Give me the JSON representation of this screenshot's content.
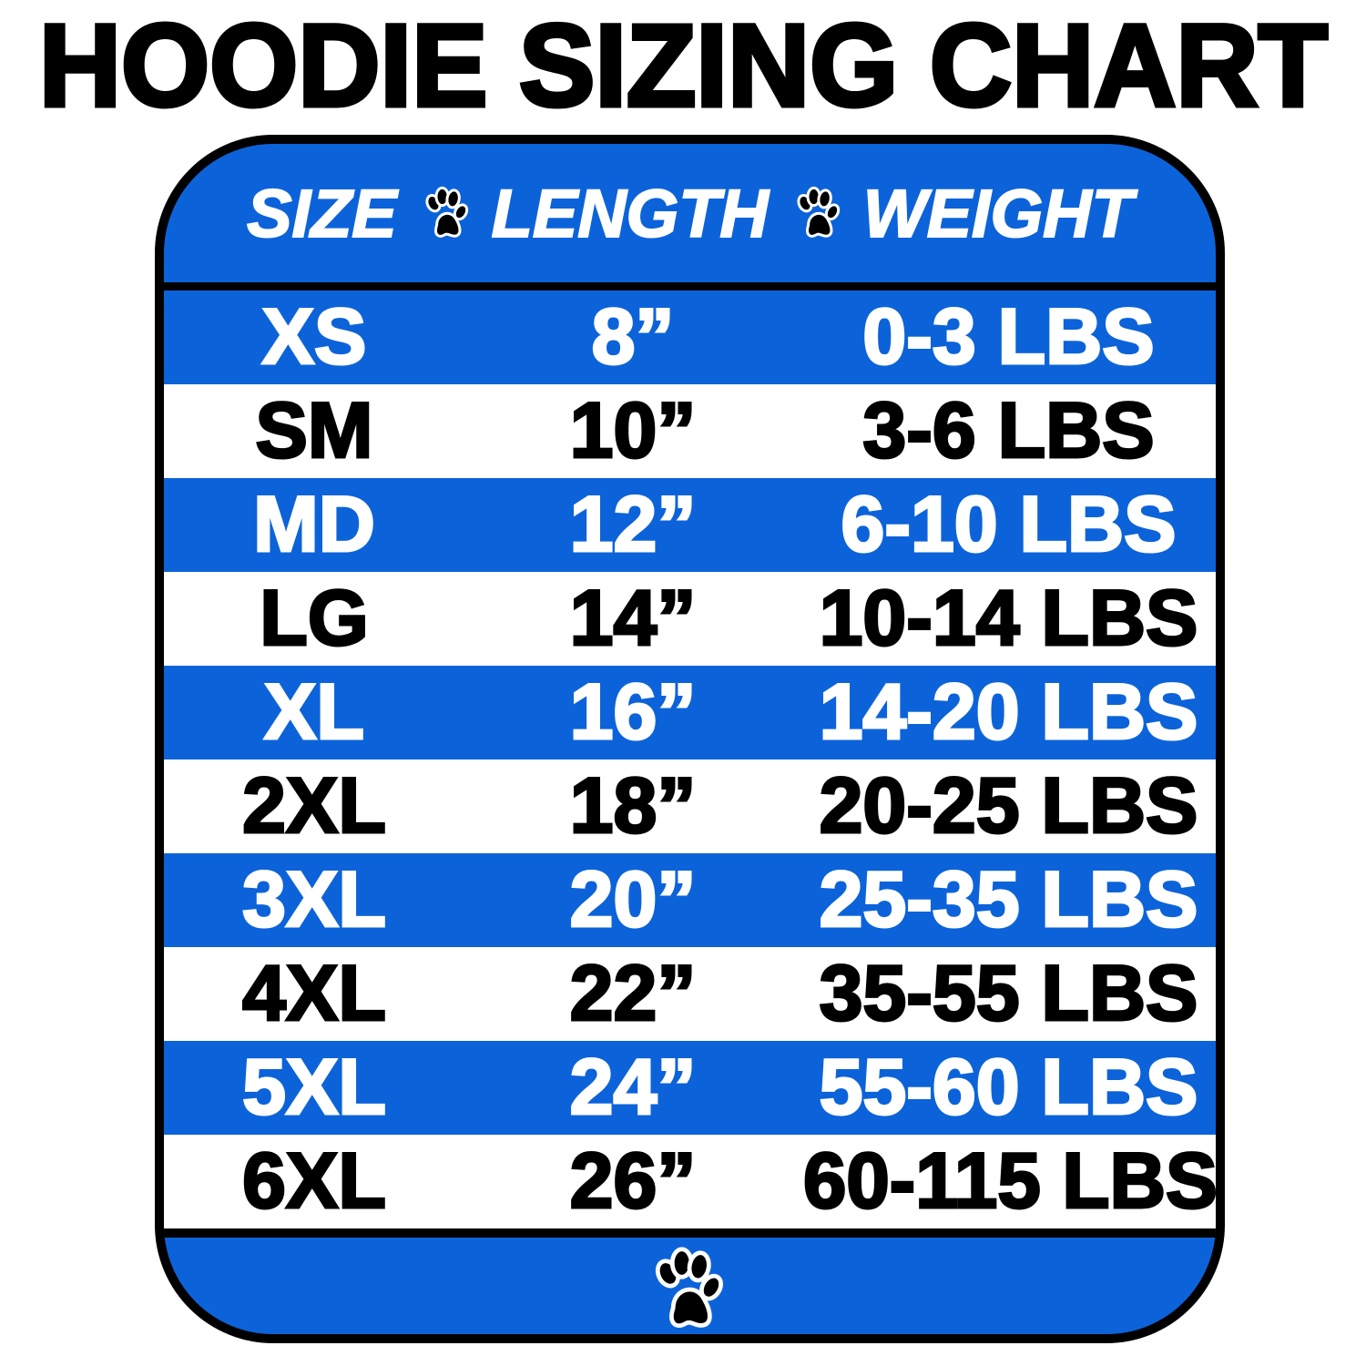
{
  "title": "HOODIE SIZING CHART",
  "colors": {
    "blue": "#0c63d9",
    "black": "#000000",
    "white": "#ffffff"
  },
  "header": {
    "size": "SIZE",
    "length": "LENGTH",
    "weight": "WEIGHT",
    "separator_icon": "paw-icon"
  },
  "rows": [
    {
      "size": "XS",
      "length": "8”",
      "weight": "0-3 LBS"
    },
    {
      "size": "SM",
      "length": "10”",
      "weight": "3-6 LBS"
    },
    {
      "size": "MD",
      "length": "12”",
      "weight": "6-10 LBS"
    },
    {
      "size": "LG",
      "length": "14”",
      "weight": "10-14 LBS"
    },
    {
      "size": "XL",
      "length": "16”",
      "weight": "14-20 LBS"
    },
    {
      "size": "2XL",
      "length": "18”",
      "weight": "20-25 LBS"
    },
    {
      "size": "3XL",
      "length": "20”",
      "weight": "25-35 LBS"
    },
    {
      "size": "4XL",
      "length": "22”",
      "weight": "35-55 LBS"
    },
    {
      "size": "5XL",
      "length": "24”",
      "weight": "55-60 LBS"
    },
    {
      "size": "6XL",
      "length": "26”",
      "weight": "60-115 LBS"
    }
  ],
  "footer": {
    "icon": "paw-icon"
  }
}
